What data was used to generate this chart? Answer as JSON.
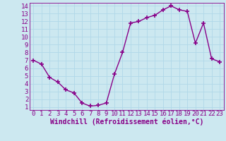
{
  "x": [
    0,
    1,
    2,
    3,
    4,
    5,
    6,
    7,
    8,
    9,
    10,
    11,
    12,
    13,
    14,
    15,
    16,
    17,
    18,
    19,
    20,
    21,
    22,
    23
  ],
  "y": [
    7.0,
    6.5,
    4.8,
    4.2,
    3.2,
    2.8,
    1.5,
    1.1,
    1.2,
    1.5,
    5.2,
    8.0,
    11.8,
    12.0,
    12.5,
    12.8,
    13.5,
    14.0,
    13.5,
    13.3,
    9.2,
    11.8,
    7.2,
    6.8
  ],
  "line_color": "#880088",
  "marker": "+",
  "marker_size": 4,
  "bg_color": "#cce8f0",
  "grid_color": "#b0d8e8",
  "xlabel": "Windchill (Refroidissement éolien,°C)",
  "xlabel_color": "#880088",
  "tick_color": "#880088",
  "spine_color": "#880088",
  "ylim_min": 1,
  "ylim_max": 14,
  "xlim_min": 0,
  "xlim_max": 23,
  "yticks": [
    1,
    2,
    3,
    4,
    5,
    6,
    7,
    8,
    9,
    10,
    11,
    12,
    13,
    14
  ],
  "xticks": [
    0,
    1,
    2,
    3,
    4,
    5,
    6,
    7,
    8,
    9,
    10,
    11,
    12,
    13,
    14,
    15,
    16,
    17,
    18,
    19,
    20,
    21,
    22,
    23
  ],
  "font_size": 6.5,
  "xlabel_fontsize": 7,
  "line_width": 1.0,
  "marker_lw": 1.2
}
